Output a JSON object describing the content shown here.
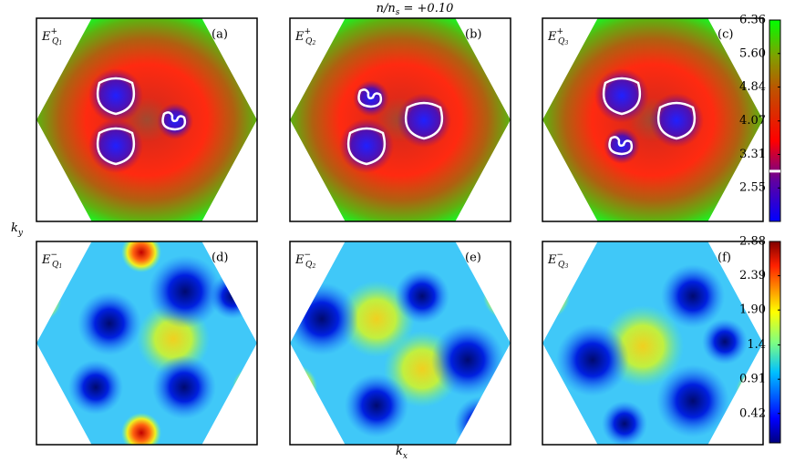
{
  "chart_data": {
    "type": "contour",
    "title": {
      "main": "n/n",
      "sub": "s",
      "rest": " = +0.10"
    },
    "xlabel": {
      "main": "k",
      "sub": "x"
    },
    "ylabel": {
      "main": "k",
      "sub": "y"
    },
    "panels": [
      {
        "label": "(a)",
        "symbol": "E",
        "sup": "+",
        "sub": "Q",
        "subsub": "1",
        "row": 0
      },
      {
        "label": "(b)",
        "symbol": "E",
        "sup": "+",
        "sub": "Q",
        "subsub": "2",
        "row": 0
      },
      {
        "label": "(c)",
        "symbol": "E",
        "sup": "+",
        "sub": "Q",
        "subsub": "3",
        "row": 0
      },
      {
        "label": "(d)",
        "symbol": "E",
        "sup": "−",
        "sub": "Q",
        "subsub": "1",
        "row": 1
      },
      {
        "label": "(e)",
        "symbol": "E",
        "sup": "−",
        "sub": "Q",
        "subsub": "2",
        "row": 1
      },
      {
        "label": "(f)",
        "symbol": "E",
        "sup": "−",
        "sub": "Q",
        "subsub": "3",
        "row": 1
      }
    ],
    "colorbars": [
      {
        "lim": [
          1.79,
          6.36
        ],
        "ticks": [
          2.55,
          3.31,
          4.07,
          4.84,
          {
            "value": 5.6,
            "label": "5.60"
          },
          6.36
        ],
        "contour_level": 2.93
      },
      {
        "lim": [
          0,
          2.88
        ],
        "ticks": [
          0.42,
          0.91,
          1.4,
          {
            "value": 1.9,
            "label": "1.90"
          },
          2.39,
          2.88
        ]
      }
    ]
  }
}
